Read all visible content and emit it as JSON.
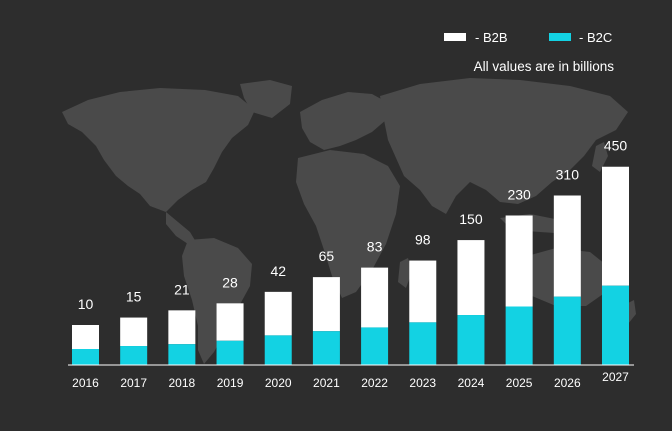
{
  "colors": {
    "background": "#2d2d2d",
    "map": "#4a4a4a",
    "b2b": "#ffffff",
    "b2c": "#13d2e3",
    "axis": "#ffffff",
    "text": "#ffffff"
  },
  "note": "All values are in billions",
  "legend": {
    "position": "top-right",
    "items": [
      {
        "label": "- B2B",
        "color": "#ffffff"
      },
      {
        "label": "- B2C",
        "color": "#13d2e3"
      }
    ]
  },
  "chart_data": {
    "type": "bar",
    "stacked": true,
    "categories": [
      "2016",
      "2017",
      "2018",
      "2019",
      "2020",
      "2021",
      "2022",
      "2023",
      "2024",
      "2025",
      "2026",
      "2027"
    ],
    "totals": [
      "10",
      "15",
      "21",
      "28",
      "42",
      "65",
      "83",
      "98",
      "150",
      "230",
      "310",
      "450"
    ],
    "series": [
      {
        "name": "B2C",
        "color": "#13d2e3",
        "values": [
          4,
          6,
          8,
          11,
          17,
          25,
          32,
          40,
          60,
          90,
          125,
          180
        ]
      },
      {
        "name": "B2B",
        "color": "#ffffff",
        "values": [
          6,
          9,
          13,
          17,
          25,
          40,
          51,
          58,
          90,
          140,
          185,
          270
        ]
      }
    ],
    "scale": "nonlinear",
    "grid": false,
    "title": "",
    "xlabel": "",
    "ylabel": ""
  }
}
